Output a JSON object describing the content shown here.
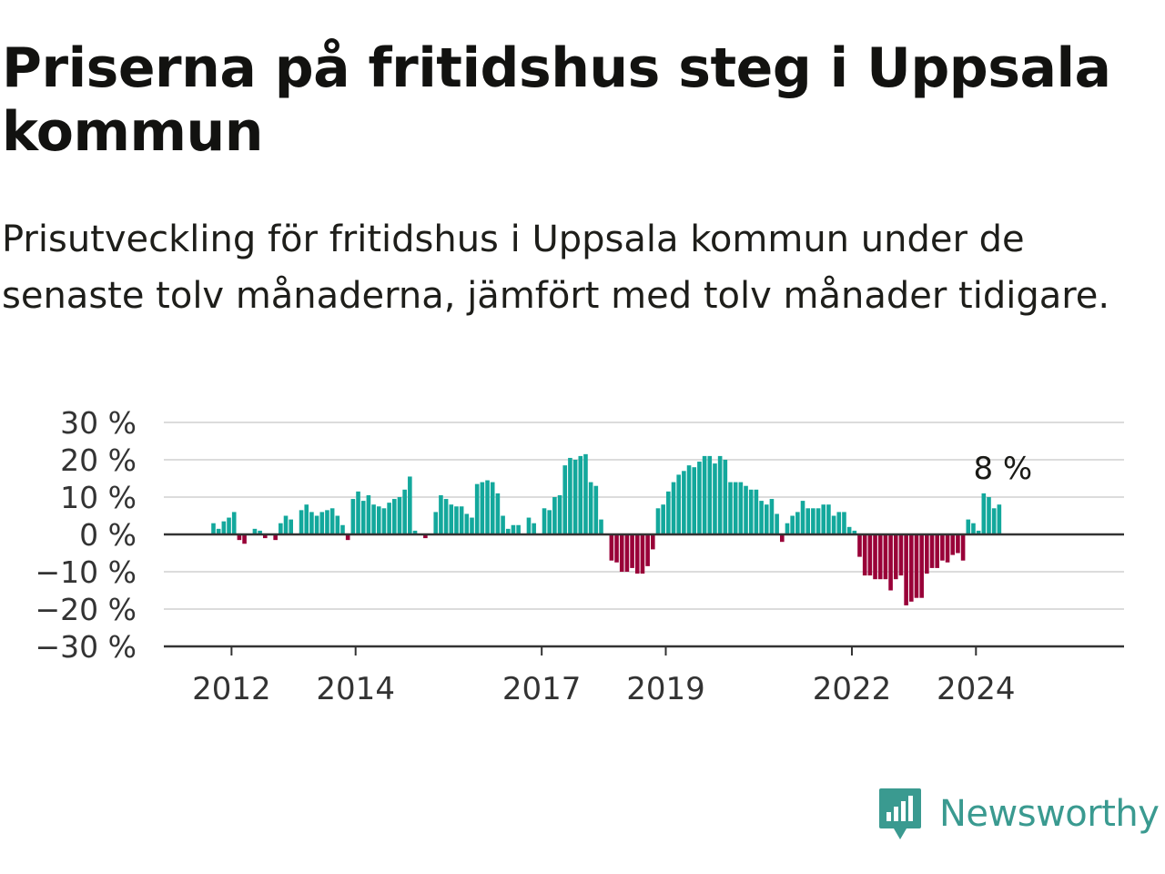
{
  "title": "Priserna på fritidshus steg i Uppsala kommun",
  "subtitle": "Prisutveckling för fritidshus i Uppsala kommun under de senaste tolv månaderna, jämfört med tolv månader tidigare.",
  "brand": {
    "name": "Newsworthy",
    "icon": "newsworthy-logo-icon",
    "color": "#3a9a90"
  },
  "colors": {
    "positive": "#13a89c",
    "negative": "#990038",
    "grid": "#dcdcdc",
    "axis": "#333333"
  },
  "chart_data": {
    "type": "bar",
    "x_unit": "month",
    "x_start": "2011-09",
    "ylim": [
      -30,
      30
    ],
    "yticks": [
      30,
      20,
      10,
      0,
      -10,
      -20,
      -30
    ],
    "ytick_labels": [
      "30 %",
      "20 %",
      "10 %",
      "0 %",
      "−10 %",
      "−20 %",
      "−30 %"
    ],
    "xticks": [
      {
        "label": "2012",
        "date": "2012-01"
      },
      {
        "label": "2014",
        "date": "2014-01"
      },
      {
        "label": "2017",
        "date": "2017-01"
      },
      {
        "label": "2019",
        "date": "2019-01"
      },
      {
        "label": "2022",
        "date": "2022-01"
      },
      {
        "label": "2024",
        "date": "2024-01"
      }
    ],
    "last_value_label": "8 %",
    "grid": true,
    "values": [
      3,
      1.5,
      3.5,
      4.5,
      6,
      -1.5,
      -2.5,
      0,
      1.5,
      1,
      -1,
      0,
      -1.5,
      3,
      5,
      4,
      0,
      6.5,
      8,
      6,
      5,
      6,
      6.5,
      7,
      5,
      2.5,
      -1.5,
      9.5,
      11.5,
      9,
      10.5,
      8,
      7.5,
      7,
      8.5,
      9.5,
      10,
      12,
      15.5,
      1,
      0,
      -1,
      0,
      6,
      10.5,
      9.5,
      8,
      7.5,
      7.5,
      5.5,
      4.5,
      13.5,
      14,
      14.5,
      14,
      11,
      5,
      1.5,
      2.5,
      2.5,
      0,
      4.5,
      3,
      0,
      7,
      6.5,
      10,
      10.5,
      18.5,
      20.5,
      20,
      21,
      21.5,
      14,
      13,
      4,
      0,
      -7,
      -7.5,
      -10,
      -10,
      -9,
      -10.5,
      -10.5,
      -8.5,
      -4,
      7,
      8,
      11.5,
      14,
      16,
      17,
      18.5,
      18,
      19.5,
      21,
      21,
      19,
      21,
      20,
      14,
      14,
      14,
      13,
      12,
      12,
      9,
      8,
      9.5,
      5.5,
      -2,
      3,
      5,
      6,
      9,
      7,
      7,
      7,
      8,
      8,
      5,
      6,
      6,
      2,
      1,
      -6,
      -11,
      -11,
      -12,
      -12,
      -12,
      -15,
      -12,
      -11,
      -19,
      -18,
      -17,
      -17,
      -10.5,
      -9,
      -9,
      -7,
      -7.5,
      -5.5,
      -5,
      -7,
      4,
      3,
      1,
      11,
      10,
      7,
      8
    ]
  }
}
